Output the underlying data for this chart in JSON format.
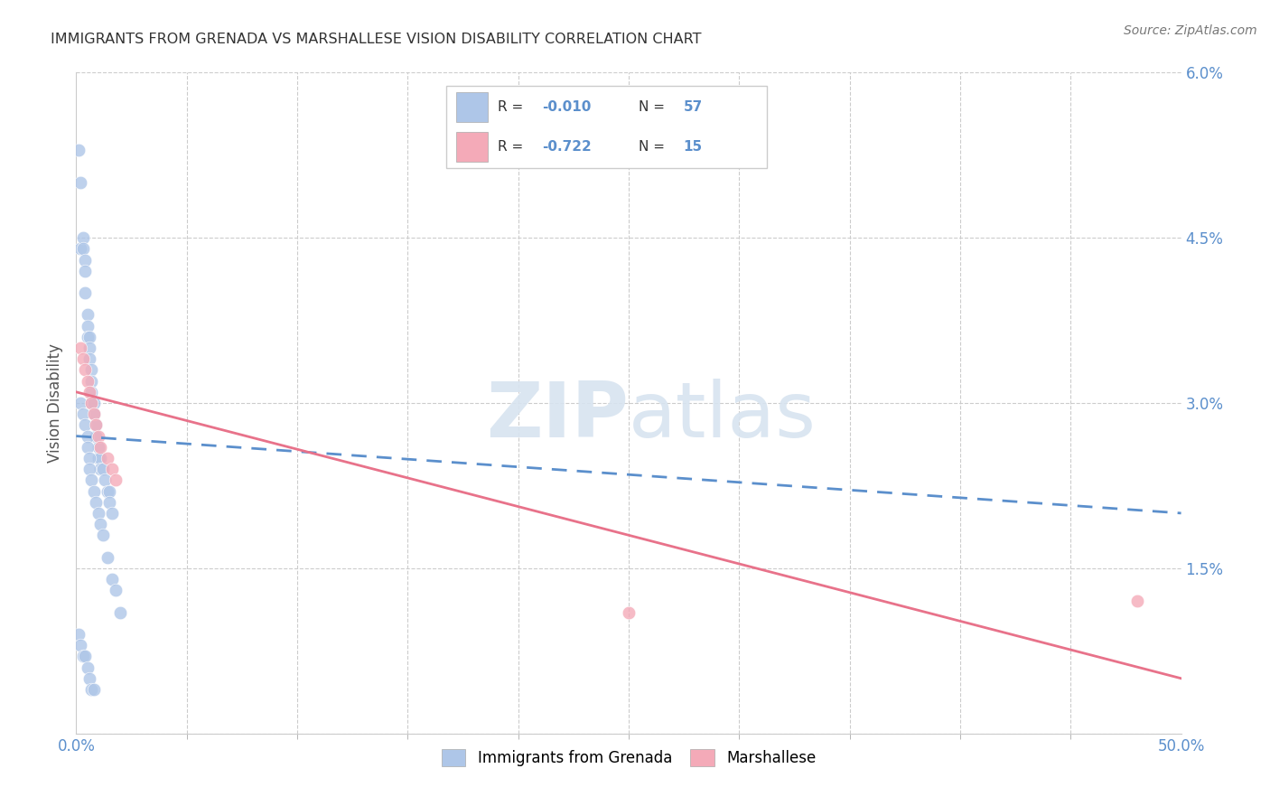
{
  "title": "IMMIGRANTS FROM GRENADA VS MARSHALLESE VISION DISABILITY CORRELATION CHART",
  "source": "Source: ZipAtlas.com",
  "ylabel": "Vision Disability",
  "xlim": [
    0,
    0.5
  ],
  "ylim": [
    0,
    0.06
  ],
  "xtick_vals": [
    0.0,
    0.5
  ],
  "xtick_labels": [
    "0.0%",
    "50.0%"
  ],
  "ytick_vals": [
    0.0,
    0.015,
    0.03,
    0.045,
    0.06
  ],
  "ytick_labels_right": [
    "",
    "1.5%",
    "3.0%",
    "4.5%",
    "6.0%"
  ],
  "r1": "-0.010",
  "n1": "57",
  "r2": "-0.722",
  "n2": "15",
  "blue_color": "#aec6e8",
  "pink_color": "#f4aab8",
  "blue_line_color": "#5b8fcc",
  "pink_line_color": "#e8728a",
  "rn_text_color": "#5b8fcc",
  "watermark_color": "#d8e4f0",
  "blue_x": [
    0.001,
    0.002,
    0.002,
    0.003,
    0.003,
    0.004,
    0.004,
    0.004,
    0.005,
    0.005,
    0.005,
    0.006,
    0.006,
    0.006,
    0.007,
    0.007,
    0.007,
    0.007,
    0.008,
    0.008,
    0.009,
    0.009,
    0.01,
    0.01,
    0.011,
    0.011,
    0.012,
    0.013,
    0.014,
    0.015,
    0.015,
    0.016,
    0.001,
    0.002,
    0.003,
    0.004,
    0.005,
    0.006,
    0.007,
    0.008,
    0.002,
    0.003,
    0.004,
    0.005,
    0.005,
    0.006,
    0.006,
    0.007,
    0.008,
    0.009,
    0.01,
    0.011,
    0.012,
    0.014,
    0.016,
    0.018,
    0.02
  ],
  "blue_y": [
    0.053,
    0.05,
    0.044,
    0.045,
    0.044,
    0.043,
    0.042,
    0.04,
    0.038,
    0.037,
    0.036,
    0.036,
    0.035,
    0.034,
    0.033,
    0.032,
    0.031,
    0.03,
    0.03,
    0.029,
    0.028,
    0.027,
    0.026,
    0.025,
    0.025,
    0.024,
    0.024,
    0.023,
    0.022,
    0.022,
    0.021,
    0.02,
    0.009,
    0.008,
    0.007,
    0.007,
    0.006,
    0.005,
    0.004,
    0.004,
    0.03,
    0.029,
    0.028,
    0.027,
    0.026,
    0.025,
    0.024,
    0.023,
    0.022,
    0.021,
    0.02,
    0.019,
    0.018,
    0.016,
    0.014,
    0.013,
    0.011
  ],
  "pink_x": [
    0.002,
    0.003,
    0.004,
    0.005,
    0.006,
    0.007,
    0.008,
    0.009,
    0.01,
    0.011,
    0.014,
    0.016,
    0.018,
    0.25,
    0.48
  ],
  "pink_y": [
    0.035,
    0.034,
    0.033,
    0.032,
    0.031,
    0.03,
    0.029,
    0.028,
    0.027,
    0.026,
    0.025,
    0.024,
    0.023,
    0.011,
    0.012
  ],
  "blue_trend_x": [
    0.0,
    0.5
  ],
  "blue_trend_y": [
    0.027,
    0.02
  ],
  "pink_trend_x": [
    0.0,
    0.5
  ],
  "pink_trend_y": [
    0.031,
    0.005
  ]
}
